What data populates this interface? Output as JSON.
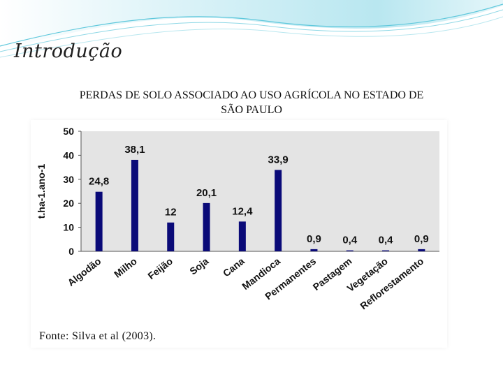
{
  "slide": {
    "title": "Introdução",
    "subtitle_line1": "PERDAS DE SOLO ASSOCIADO AO USO AGRÍCOLA NO ESTADO DE",
    "subtitle_line2": "SÃO PAULO",
    "source": "Fonte: Silva et al (2003)."
  },
  "colors": {
    "bar": "#0a0a78",
    "plot_bg": "#e4e4e4",
    "decor_wave": "#5fc8dc"
  },
  "chart_data": {
    "type": "bar",
    "title": "",
    "ylabel": "t.ha-1.ano-1",
    "xlabel": "",
    "ylim": [
      0,
      50
    ],
    "yticks": [
      "0",
      "10",
      "20",
      "30",
      "40",
      "50"
    ],
    "categories": [
      "Algodão",
      "Milho",
      "Feijão",
      "Soja",
      "Cana",
      "Mandioca",
      "Permanentes",
      "Pastagem",
      "Vegetação",
      "Reflorestamento"
    ],
    "values": [
      24.8,
      38.1,
      12,
      20.1,
      12.4,
      33.9,
      0.9,
      0.4,
      0.4,
      0.9
    ],
    "data_labels": [
      "24,8",
      "38,1",
      "12",
      "20,1",
      "12,4",
      "33,9",
      "0,9",
      "0,4",
      "0,4",
      "0,9"
    ],
    "grid": false,
    "legend": "none"
  }
}
